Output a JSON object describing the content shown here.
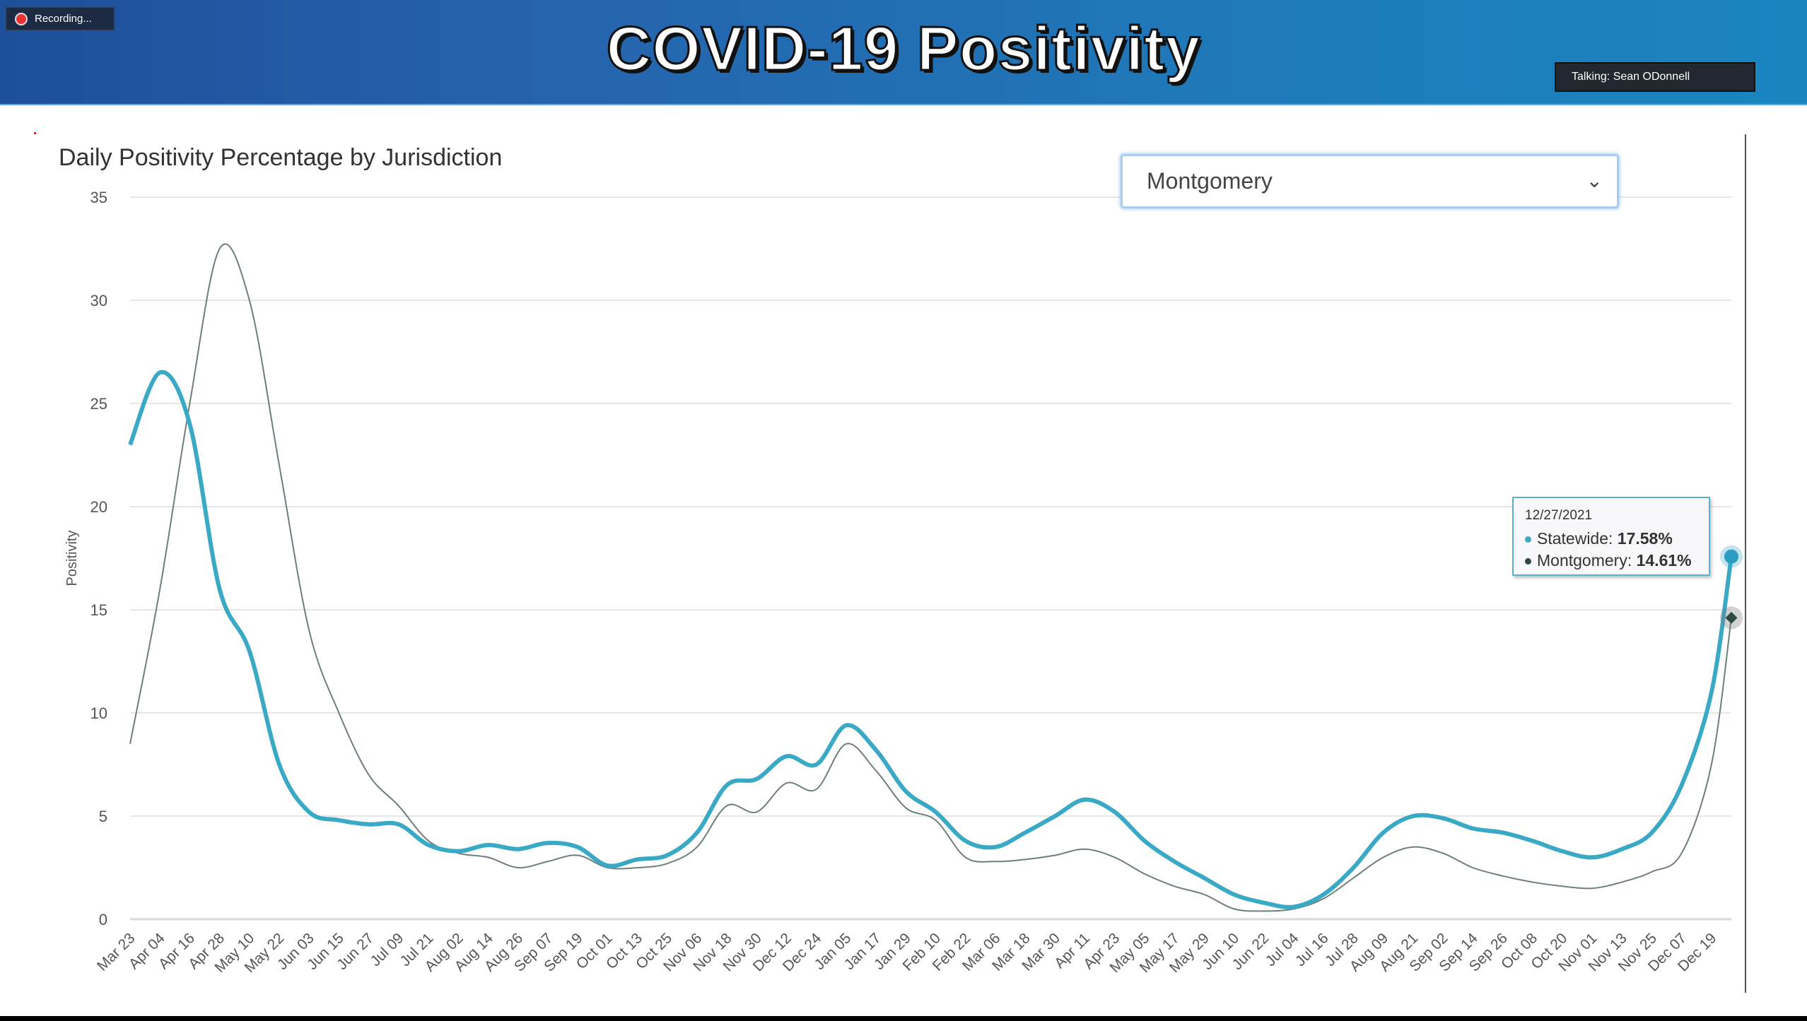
{
  "header": {
    "title": "COVID-19 Positivity",
    "recording_label": "Recording...",
    "talking_label": "Talking: Sean ODonnell"
  },
  "jurisdiction_select": {
    "value": "Montgomery"
  },
  "tooltip": {
    "date": "12/27/2021",
    "rows": [
      {
        "label": "Statewide:",
        "value": "17.58%"
      },
      {
        "label": "Montgomery:",
        "value": "14.61%"
      }
    ]
  },
  "colors": {
    "statewide": "#3aa9c6",
    "montgomery": "#6e7f7a",
    "grid": "#e6e6e6"
  },
  "chart_data": {
    "type": "line",
    "title": "Daily Positivity Percentage by Jurisdiction",
    "xlabel": "",
    "ylabel": "Positivity",
    "ylim": [
      0,
      35
    ],
    "yticks": [
      "0",
      "5",
      "10",
      "15",
      "20",
      "25",
      "30",
      "35"
    ],
    "ytick_values": [
      0,
      5,
      10,
      15,
      20,
      25,
      30,
      35
    ],
    "xlim_days": [
      0,
      644
    ],
    "x_tick_labels": [
      "Mar 23",
      "Apr 04",
      "Apr 16",
      "Apr 28",
      "May 10",
      "May 22",
      "Jun 03",
      "Jun 15",
      "Jun 27",
      "Jul 09",
      "Jul 21",
      "Aug 02",
      "Aug 14",
      "Aug 26",
      "Sep 07",
      "Sep 19",
      "Oct 01",
      "Oct 13",
      "Oct 25",
      "Nov 06",
      "Nov 18",
      "Nov 30",
      "Dec 12",
      "Dec 24",
      "Jan 05",
      "Jan 17",
      "Jan 29",
      "Feb 10",
      "Feb 22",
      "Mar 06",
      "Mar 18",
      "Mar 30",
      "Apr 11",
      "Apr 23",
      "May 05",
      "May 17",
      "May 29",
      "Jun 10",
      "Jun 22",
      "Jul 04",
      "Jul 16",
      "Jul 28",
      "Aug 09",
      "Aug 21",
      "Sep 02",
      "Sep 14",
      "Sep 26",
      "Oct 08",
      "Oct 20",
      "Nov 01",
      "Nov 13",
      "Nov 25",
      "Dec 07",
      "Dec 19"
    ],
    "x_tick_interval_days": 12,
    "grid": true,
    "series": [
      {
        "name": "Statewide",
        "values": [
          23,
          26.5,
          24,
          16,
          13,
          7.5,
          5.2,
          4.8,
          4.6,
          4.6,
          3.6,
          3.3,
          3.6,
          3.4,
          3.7,
          3.5,
          2.6,
          2.9,
          3.1,
          4.2,
          6.5,
          6.8,
          7.9,
          7.5,
          9.4,
          8.2,
          6.2,
          5.2,
          3.8,
          3.5,
          4.2,
          5.0,
          5.8,
          5.2,
          3.8,
          2.8,
          2.0,
          1.2,
          0.8,
          0.6,
          1.2,
          2.5,
          4.2,
          5.0,
          4.9,
          4.4,
          4.2,
          3.8,
          3.3,
          3.0,
          3.4,
          4.2,
          6.5,
          11,
          17.58
        ]
      },
      {
        "name": "Montgomery",
        "values": [
          8.5,
          16,
          25,
          32.5,
          30,
          22,
          14,
          10,
          7,
          5.5,
          3.8,
          3.2,
          3.0,
          2.5,
          2.8,
          3.1,
          2.5,
          2.5,
          2.7,
          3.5,
          5.5,
          5.2,
          6.6,
          6.3,
          8.5,
          7.2,
          5.4,
          4.8,
          3.0,
          2.8,
          2.9,
          3.1,
          3.4,
          3.0,
          2.2,
          1.6,
          1.2,
          0.5,
          0.4,
          0.5,
          1.0,
          2.0,
          3.0,
          3.5,
          3.2,
          2.5,
          2.1,
          1.8,
          1.6,
          1.5,
          1.8,
          2.3,
          3.2,
          7.5,
          14.61
        ]
      }
    ],
    "point_days_last": 644
  }
}
